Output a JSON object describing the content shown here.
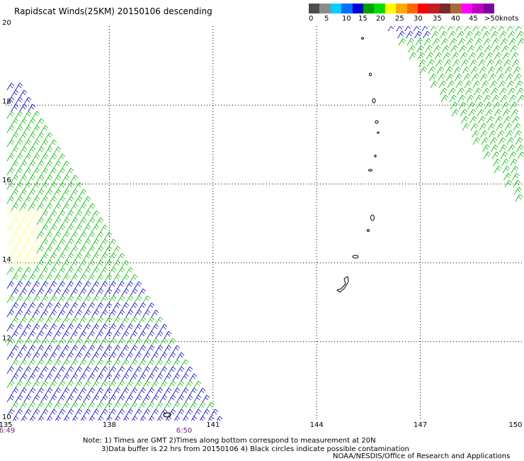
{
  "title": "Rapidscat Winds(25KM) 20150106 descending",
  "scale": {
    "colors": [
      "#4d4d4d",
      "#8c8c8c",
      "#00cfff",
      "#0070ff",
      "#0000d8",
      "#00a000",
      "#00dd00",
      "#ffff00",
      "#ffaa00",
      "#ff6600",
      "#ff0000",
      "#c41e1e",
      "#7a2a2a",
      "#a86a3a",
      "#ff00ff",
      "#c000c0",
      "#8000a0"
    ],
    "labels": [
      "0",
      "5",
      "10",
      "15",
      "20",
      "25",
      "30",
      "35",
      "40",
      "45",
      ">50"
    ],
    "units": "knots"
  },
  "axes": {
    "lat_labels": [
      "20",
      "18",
      "16",
      "14",
      "12",
      "10"
    ],
    "lon_labels": [
      "135",
      "138",
      "141",
      "144",
      "147",
      "150"
    ],
    "lat_range": [
      10,
      20
    ],
    "lon_range": [
      135,
      150
    ]
  },
  "times": [
    "6:49",
    "6:50"
  ],
  "notes": [
    "Note: 1) Times are GMT 2)Times along bottom correspond to measurement at 20N",
    "3)Data buffer is 22 hrs from 20150106 4) Black circles indicate possible contamination"
  ],
  "credit": "NOAA/NESDIS/Office of Research and Applications",
  "wind_colors": {
    "low": "#0000cc",
    "moderate": "#00bb00",
    "light": "#ffff66"
  }
}
